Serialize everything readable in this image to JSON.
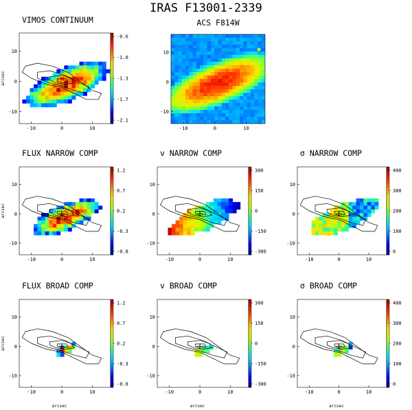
{
  "figure": {
    "title": "IRAS F13001-2339"
  },
  "colors": {
    "jet": [
      "#00008b",
      "#0000ff",
      "#0080ff",
      "#00e0ff",
      "#40ff80",
      "#c0ff00",
      "#ffe000",
      "#ff8000",
      "#ff2000",
      "#a00000"
    ],
    "contour": "#000000"
  },
  "chart_data": [
    {
      "type": "heatmap",
      "title": "VIMOS CONTINUUM",
      "ylabel": "arcsec",
      "xticks": [
        "-10",
        "0",
        "10"
      ],
      "yticks": [
        "10",
        "0",
        "-10"
      ],
      "colorbar_ticks": [
        "-0.6",
        "-1.0",
        "-1.3",
        "-1.7",
        "-2.1"
      ]
    },
    {
      "type": "heatmap",
      "title": "ACS F814W",
      "xticks": [
        "-10",
        "0",
        "10"
      ],
      "yticks": [
        "10",
        "0",
        "-10"
      ]
    },
    {
      "type": "heatmap",
      "title": "FLUX NARROW COMP",
      "ylabel": "arcsec",
      "xticks": [
        "-10",
        "0",
        "10"
      ],
      "yticks": [
        "10",
        "0",
        "-10"
      ],
      "colorbar_ticks": [
        "1.2",
        "0.7",
        "0.2",
        "-0.3",
        "-0.8"
      ]
    },
    {
      "type": "heatmap",
      "title": "v NARROW COMP",
      "xticks": [
        "-10",
        "0",
        "10"
      ],
      "yticks": [
        "10",
        "0",
        "-10"
      ],
      "colorbar_ticks": [
        "300",
        "150",
        "0",
        "-150",
        "-300"
      ]
    },
    {
      "type": "heatmap",
      "title": "σ NARROW COMP",
      "xticks": [
        "-10",
        "0",
        "10"
      ],
      "yticks": [
        "10",
        "0",
        "-10"
      ],
      "colorbar_ticks": [
        "400",
        "300",
        "200",
        "100",
        "0"
      ]
    },
    {
      "type": "heatmap",
      "title": "FLUX BROAD COMP",
      "ylabel": "arcsec",
      "xlabel": "arcsec",
      "xticks": [
        "-10",
        "0",
        "10"
      ],
      "yticks": [
        "10",
        "0",
        "-10"
      ],
      "colorbar_ticks": [
        "1.2",
        "0.7",
        "0.2",
        "-0.3",
        "-0.8"
      ]
    },
    {
      "type": "heatmap",
      "title": "v BROAD COMP",
      "xlabel": "arcsec",
      "xticks": [
        "-10",
        "0",
        "10"
      ],
      "yticks": [
        "10",
        "0",
        "-10"
      ],
      "colorbar_ticks": [
        "300",
        "150",
        "0",
        "-150",
        "-300"
      ]
    },
    {
      "type": "heatmap",
      "title": "σ BROAD COMP",
      "xlabel": "arcsec",
      "xticks": [
        "-10",
        "0",
        "10"
      ],
      "yticks": [
        "10",
        "0",
        "-10"
      ],
      "colorbar_ticks": [
        "400",
        "300",
        "200",
        "100",
        "0"
      ]
    }
  ]
}
